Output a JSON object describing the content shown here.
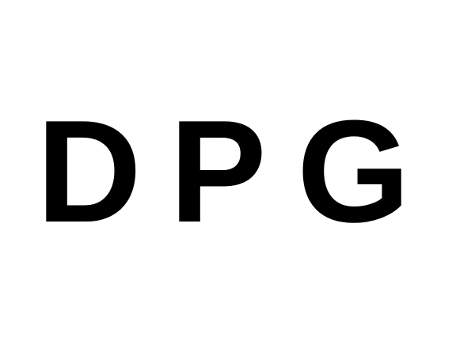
{
  "letters": [
    "D",
    "P",
    "G"
  ],
  "colors": {
    "background": "#ffffff",
    "text": "#000000"
  }
}
